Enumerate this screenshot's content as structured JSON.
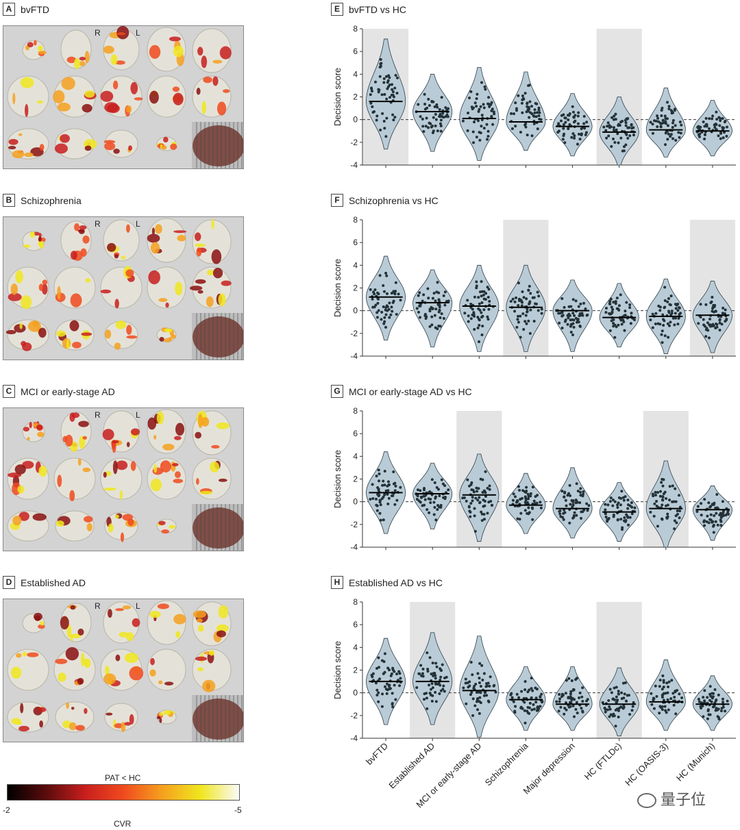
{
  "brain_panels": [
    {
      "letter": "A",
      "title": "bvFTD"
    },
    {
      "letter": "B",
      "title": "Schizophrenia"
    },
    {
      "letter": "C",
      "title": "MCI or early-stage AD"
    },
    {
      "letter": "D",
      "title": "Established AD"
    }
  ],
  "orientation": {
    "right": "R",
    "left": "L"
  },
  "colorbar": {
    "title": "PAT < HC",
    "min_label": "-2",
    "max_label": "-5",
    "axis_label": "CVR",
    "colors": [
      "#000000",
      "#5a0c0c",
      "#c81e1e",
      "#f04a1e",
      "#f5a01e",
      "#f0e61e",
      "#fafafa"
    ]
  },
  "watermark": "量子位",
  "chart_data": [
    {
      "letter": "E",
      "title": "bvFTD vs HC",
      "type": "violin",
      "ylabel": "Decision score",
      "ylim": [
        -4,
        8
      ],
      "yticks": [
        -4,
        -2,
        0,
        2,
        4,
        6,
        8
      ],
      "categories": [
        "bvFTD",
        "Established AD",
        "MCI or early-stage AD",
        "Schizophrenia",
        "Major depression",
        "HC (FTLDc)",
        "HC (OASIS-3)",
        "HC (Munich)"
      ],
      "medians": [
        1.6,
        0.7,
        0.1,
        -0.2,
        -0.6,
        -1.1,
        -0.9,
        -1.0
      ],
      "ranges": [
        [
          -2.6,
          7.1
        ],
        [
          -2.8,
          4.0
        ],
        [
          -3.6,
          4.6
        ],
        [
          -2.7,
          4.2
        ],
        [
          -3.2,
          2.3
        ],
        [
          -4.0,
          2.0
        ],
        [
          -3.3,
          2.8
        ],
        [
          -3.2,
          1.7
        ]
      ],
      "highlighted": [
        0,
        5
      ]
    },
    {
      "letter": "F",
      "title": "Schizophrenia vs HC",
      "type": "violin",
      "ylabel": "Decision score",
      "ylim": [
        -4,
        8
      ],
      "yticks": [
        -4,
        -2,
        0,
        2,
        4,
        6,
        8
      ],
      "categories": [
        "bvFTD",
        "Established AD",
        "MCI or early-stage AD",
        "Schizophrenia",
        "Major depression",
        "HC (FTLDc)",
        "HC (OASIS-3)",
        "HC (Munich)"
      ],
      "medians": [
        1.2,
        0.7,
        0.4,
        0.3,
        0.0,
        -0.6,
        -0.5,
        -0.4
      ],
      "ranges": [
        [
          -2.6,
          4.8
        ],
        [
          -3.2,
          3.6
        ],
        [
          -3.6,
          4.0
        ],
        [
          -3.6,
          4.0
        ],
        [
          -3.6,
          2.7
        ],
        [
          -3.2,
          2.4
        ],
        [
          -3.8,
          2.8
        ],
        [
          -3.7,
          2.6
        ]
      ],
      "highlighted": [
        3,
        7
      ]
    },
    {
      "letter": "G",
      "title": "MCI or early-stage AD vs HC",
      "type": "violin",
      "ylabel": "Decision score",
      "ylim": [
        -4,
        8
      ],
      "yticks": [
        -4,
        -2,
        0,
        2,
        4,
        6,
        8
      ],
      "categories": [
        "bvFTD",
        "Established AD",
        "MCI or early-stage AD",
        "Schizophrenia",
        "Major depression",
        "HC (FTLDc)",
        "HC (OASIS-3)",
        "HC (Munich)"
      ],
      "medians": [
        0.8,
        0.7,
        0.6,
        -0.3,
        -0.6,
        -0.9,
        -0.6,
        -0.7
      ],
      "ranges": [
        [
          -2.8,
          4.4
        ],
        [
          -2.4,
          3.4
        ],
        [
          -3.5,
          4.2
        ],
        [
          -2.8,
          2.5
        ],
        [
          -3.2,
          3.0
        ],
        [
          -3.5,
          1.7
        ],
        [
          -4.0,
          3.6
        ],
        [
          -3.4,
          1.4
        ]
      ],
      "highlighted": [
        2,
        6
      ]
    },
    {
      "letter": "H",
      "title": "Established AD vs HC",
      "type": "violin",
      "ylabel": "Decision score",
      "ylim": [
        -4,
        8
      ],
      "yticks": [
        -4,
        -2,
        0,
        2,
        4,
        6,
        8
      ],
      "categories": [
        "bvFTD",
        "Established AD",
        "MCI or early-stage AD",
        "Schizophrenia",
        "Major depression",
        "HC (FTLDc)",
        "HC (OASIS-3)",
        "HC (Munich)"
      ],
      "medians": [
        1.0,
        1.0,
        0.2,
        -0.6,
        -1.0,
        -1.0,
        -0.8,
        -1.0
      ],
      "ranges": [
        [
          -2.8,
          4.8
        ],
        [
          -2.8,
          5.3
        ],
        [
          -3.9,
          5.0
        ],
        [
          -3.3,
          2.3
        ],
        [
          -3.3,
          2.3
        ],
        [
          -3.8,
          2.2
        ],
        [
          -3.3,
          2.9
        ],
        [
          -3.3,
          1.5
        ]
      ],
      "highlighted": [
        1,
        5
      ]
    }
  ]
}
